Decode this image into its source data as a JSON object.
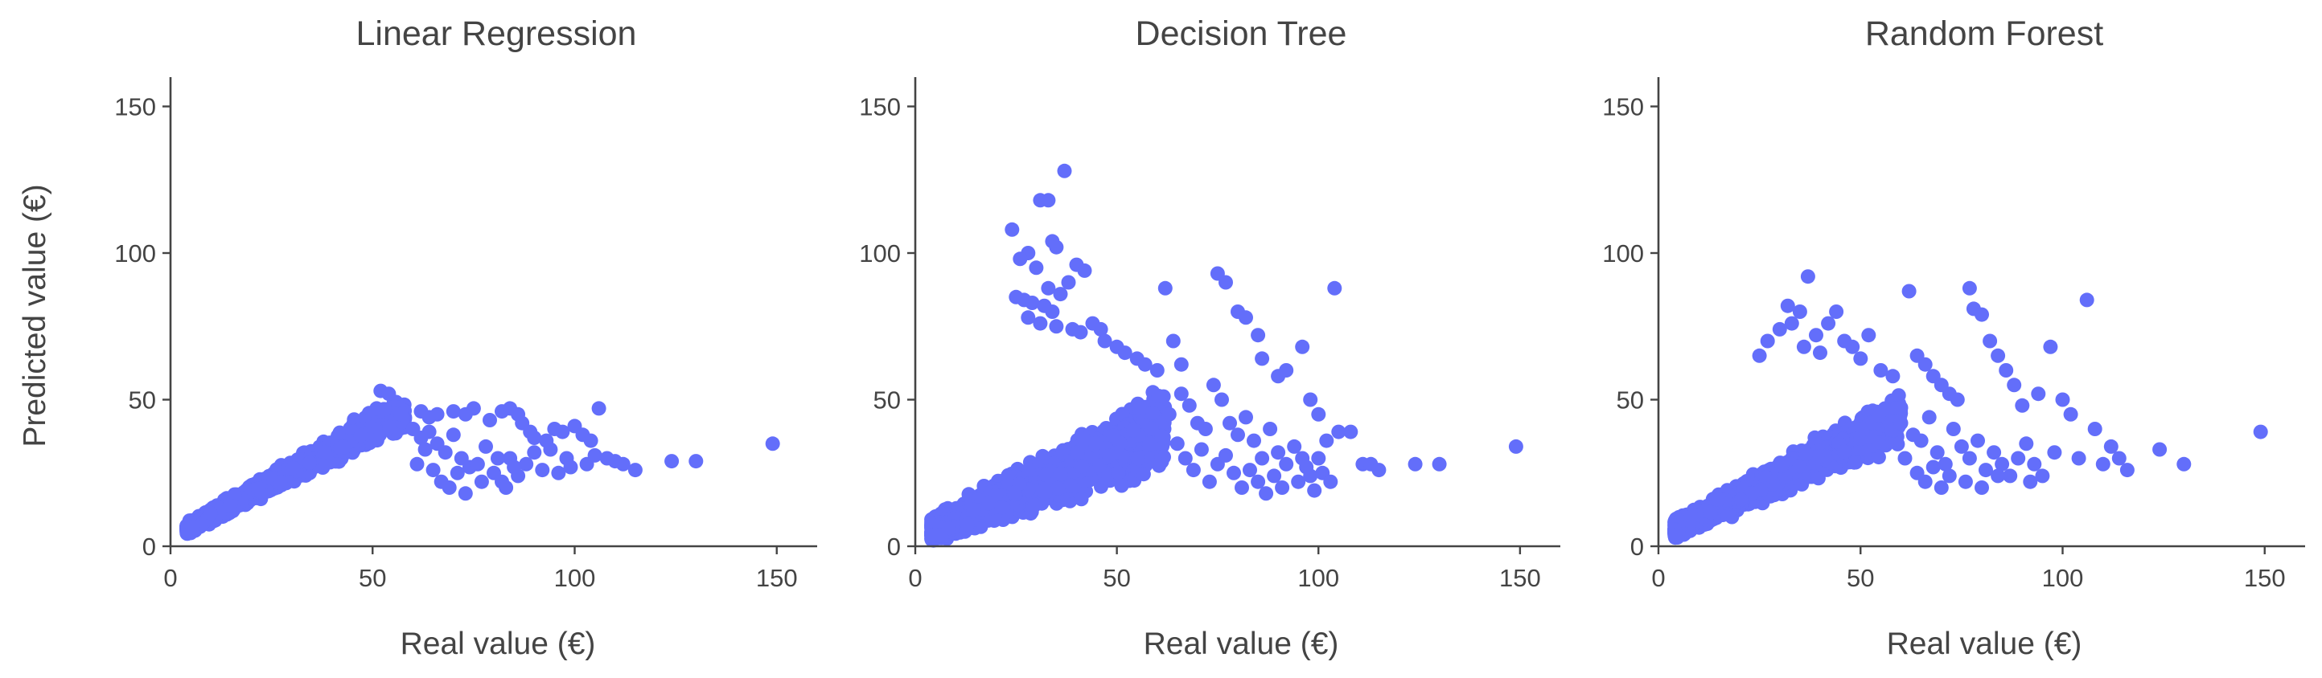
{
  "style": {
    "marker_color": "#636efa"
  },
  "shared_axes": {
    "xlabel": "Real value (€)",
    "ylabel": "Predicted value (€)",
    "xlim": [
      0,
      160
    ],
    "ylim": [
      0,
      160
    ],
    "xticks": [
      0,
      50,
      100,
      150
    ],
    "yticks": [
      0,
      50,
      100,
      150
    ]
  },
  "chart_data": [
    {
      "type": "scatter",
      "title": "Linear Regression",
      "xlabel": "Real value (€)",
      "ylabel": "Predicted value (€)",
      "xlim": [
        0,
        160
      ],
      "ylim": [
        0,
        160
      ],
      "grid": false,
      "dense_core": {
        "n": 1700,
        "x_range": [
          4,
          58
        ],
        "slope": 0.75,
        "y_max": 44,
        "spread": 6
      },
      "points": [
        [
          52,
          53
        ],
        [
          54,
          52
        ],
        [
          51,
          47
        ],
        [
          57,
          45
        ],
        [
          62,
          46
        ],
        [
          64,
          44
        ],
        [
          66,
          45
        ],
        [
          70,
          46
        ],
        [
          73,
          45
        ],
        [
          75,
          47
        ],
        [
          79,
          43
        ],
        [
          82,
          46
        ],
        [
          84,
          47
        ],
        [
          86,
          45
        ],
        [
          87,
          42
        ],
        [
          89,
          39
        ],
        [
          90,
          37
        ],
        [
          93,
          36
        ],
        [
          95,
          40
        ],
        [
          97,
          39
        ],
        [
          100,
          41
        ],
        [
          102,
          38
        ],
        [
          104,
          36
        ],
        [
          106,
          47
        ],
        [
          110,
          29
        ],
        [
          112,
          28
        ],
        [
          115,
          26
        ],
        [
          124,
          29
        ],
        [
          130,
          29
        ],
        [
          149,
          35
        ],
        [
          60,
          40
        ],
        [
          62,
          37
        ],
        [
          64,
          39
        ],
        [
          66,
          35
        ],
        [
          68,
          32
        ],
        [
          70,
          38
        ],
        [
          72,
          30
        ],
        [
          74,
          27
        ],
        [
          76,
          28
        ],
        [
          78,
          34
        ],
        [
          80,
          25
        ],
        [
          82,
          22
        ],
        [
          84,
          30
        ],
        [
          86,
          24
        ],
        [
          88,
          28
        ],
        [
          90,
          32
        ],
        [
          92,
          26
        ],
        [
          96,
          25
        ],
        [
          98,
          30
        ],
        [
          103,
          28
        ],
        [
          108,
          30
        ],
        [
          61,
          28
        ],
        [
          63,
          33
        ],
        [
          65,
          26
        ],
        [
          67,
          22
        ],
        [
          69,
          20
        ],
        [
          71,
          25
        ],
        [
          73,
          18
        ],
        [
          77,
          22
        ],
        [
          81,
          30
        ],
        [
          83,
          20
        ],
        [
          85,
          27
        ],
        [
          94,
          33
        ],
        [
          99,
          27
        ],
        [
          105,
          31
        ]
      ]
    },
    {
      "type": "scatter",
      "title": "Decision Tree",
      "xlabel": "Real value (€)",
      "ylabel": "",
      "xlim": [
        0,
        160
      ],
      "ylim": [
        0,
        160
      ],
      "grid": false,
      "dense_core": {
        "n": 2200,
        "x_range": [
          4,
          62
        ],
        "slope": 0.6,
        "y_max": 58,
        "spread": 13
      },
      "points": [
        [
          37,
          128
        ],
        [
          31,
          118
        ],
        [
          33,
          118
        ],
        [
          34,
          104
        ],
        [
          35,
          102
        ],
        [
          24,
          108
        ],
        [
          28,
          100
        ],
        [
          30,
          95
        ],
        [
          26,
          98
        ],
        [
          40,
          96
        ],
        [
          42,
          94
        ],
        [
          38,
          90
        ],
        [
          33,
          88
        ],
        [
          36,
          86
        ],
        [
          25,
          85
        ],
        [
          27,
          84
        ],
        [
          29,
          83
        ],
        [
          32,
          82
        ],
        [
          34,
          80
        ],
        [
          28,
          78
        ],
        [
          31,
          76
        ],
        [
          35,
          75
        ],
        [
          39,
          74
        ],
        [
          41,
          73
        ],
        [
          44,
          76
        ],
        [
          46,
          74
        ],
        [
          47,
          70
        ],
        [
          50,
          68
        ],
        [
          52,
          66
        ],
        [
          55,
          64
        ],
        [
          57,
          62
        ],
        [
          60,
          60
        ],
        [
          62,
          88
        ],
        [
          64,
          70
        ],
        [
          66,
          62
        ],
        [
          75,
          93
        ],
        [
          77,
          90
        ],
        [
          80,
          80
        ],
        [
          82,
          78
        ],
        [
          85,
          72
        ],
        [
          86,
          64
        ],
        [
          90,
          58
        ],
        [
          92,
          60
        ],
        [
          96,
          68
        ],
        [
          98,
          50
        ],
        [
          100,
          45
        ],
        [
          104,
          88
        ],
        [
          105,
          39
        ],
        [
          108,
          39
        ],
        [
          111,
          28
        ],
        [
          113,
          28
        ],
        [
          115,
          26
        ],
        [
          124,
          28
        ],
        [
          130,
          28
        ],
        [
          149,
          34
        ],
        [
          63,
          45
        ],
        [
          66,
          52
        ],
        [
          68,
          48
        ],
        [
          70,
          42
        ],
        [
          72,
          40
        ],
        [
          74,
          55
        ],
        [
          76,
          50
        ],
        [
          78,
          42
        ],
        [
          80,
          38
        ],
        [
          82,
          44
        ],
        [
          84,
          36
        ],
        [
          86,
          30
        ],
        [
          88,
          40
        ],
        [
          90,
          32
        ],
        [
          92,
          28
        ],
        [
          94,
          34
        ],
        [
          96,
          30
        ],
        [
          98,
          24
        ],
        [
          100,
          30
        ],
        [
          102,
          36
        ],
        [
          65,
          35
        ],
        [
          67,
          30
        ],
        [
          69,
          26
        ],
        [
          71,
          33
        ],
        [
          73,
          22
        ],
        [
          75,
          28
        ],
        [
          77,
          31
        ],
        [
          79,
          25
        ],
        [
          81,
          20
        ],
        [
          83,
          26
        ],
        [
          85,
          22
        ],
        [
          87,
          18
        ],
        [
          89,
          24
        ],
        [
          91,
          20
        ],
        [
          95,
          22
        ],
        [
          97,
          27
        ],
        [
          99,
          19
        ],
        [
          101,
          25
        ],
        [
          103,
          22
        ]
      ]
    },
    {
      "type": "scatter",
      "title": "Random Forest",
      "xlabel": "Real value (€)",
      "ylabel": "",
      "xlim": [
        0,
        160
      ],
      "ylim": [
        0,
        160
      ],
      "grid": false,
      "dense_core": {
        "n": 2000,
        "x_range": [
          4,
          60
        ],
        "slope": 0.68,
        "y_max": 52,
        "spread": 9
      },
      "points": [
        [
          37,
          92
        ],
        [
          32,
          82
        ],
        [
          35,
          80
        ],
        [
          33,
          76
        ],
        [
          44,
          80
        ],
        [
          42,
          76
        ],
        [
          39,
          72
        ],
        [
          30,
          74
        ],
        [
          27,
          70
        ],
        [
          25,
          65
        ],
        [
          36,
          68
        ],
        [
          40,
          66
        ],
        [
          46,
          70
        ],
        [
          48,
          68
        ],
        [
          50,
          64
        ],
        [
          52,
          72
        ],
        [
          55,
          60
        ],
        [
          58,
          58
        ],
        [
          62,
          87
        ],
        [
          64,
          65
        ],
        [
          66,
          62
        ],
        [
          68,
          58
        ],
        [
          70,
          55
        ],
        [
          72,
          52
        ],
        [
          74,
          50
        ],
        [
          77,
          88
        ],
        [
          78,
          81
        ],
        [
          80,
          79
        ],
        [
          82,
          70
        ],
        [
          84,
          65
        ],
        [
          86,
          60
        ],
        [
          88,
          55
        ],
        [
          90,
          48
        ],
        [
          94,
          52
        ],
        [
          97,
          68
        ],
        [
          100,
          50
        ],
        [
          102,
          45
        ],
        [
          106,
          84
        ],
        [
          108,
          40
        ],
        [
          112,
          34
        ],
        [
          114,
          30
        ],
        [
          116,
          26
        ],
        [
          124,
          33
        ],
        [
          130,
          28
        ],
        [
          149,
          39
        ],
        [
          60,
          42
        ],
        [
          63,
          38
        ],
        [
          65,
          36
        ],
        [
          67,
          44
        ],
        [
          69,
          32
        ],
        [
          71,
          28
        ],
        [
          73,
          40
        ],
        [
          75,
          34
        ],
        [
          77,
          30
        ],
        [
          79,
          36
        ],
        [
          81,
          26
        ],
        [
          83,
          32
        ],
        [
          85,
          28
        ],
        [
          87,
          24
        ],
        [
          89,
          30
        ],
        [
          91,
          35
        ],
        [
          93,
          28
        ],
        [
          95,
          24
        ],
        [
          98,
          32
        ],
        [
          104,
          30
        ],
        [
          110,
          28
        ],
        [
          61,
          30
        ],
        [
          64,
          25
        ],
        [
          66,
          22
        ],
        [
          68,
          27
        ],
        [
          70,
          20
        ],
        [
          72,
          24
        ],
        [
          76,
          22
        ],
        [
          80,
          20
        ],
        [
          84,
          24
        ],
        [
          92,
          22
        ]
      ]
    }
  ]
}
